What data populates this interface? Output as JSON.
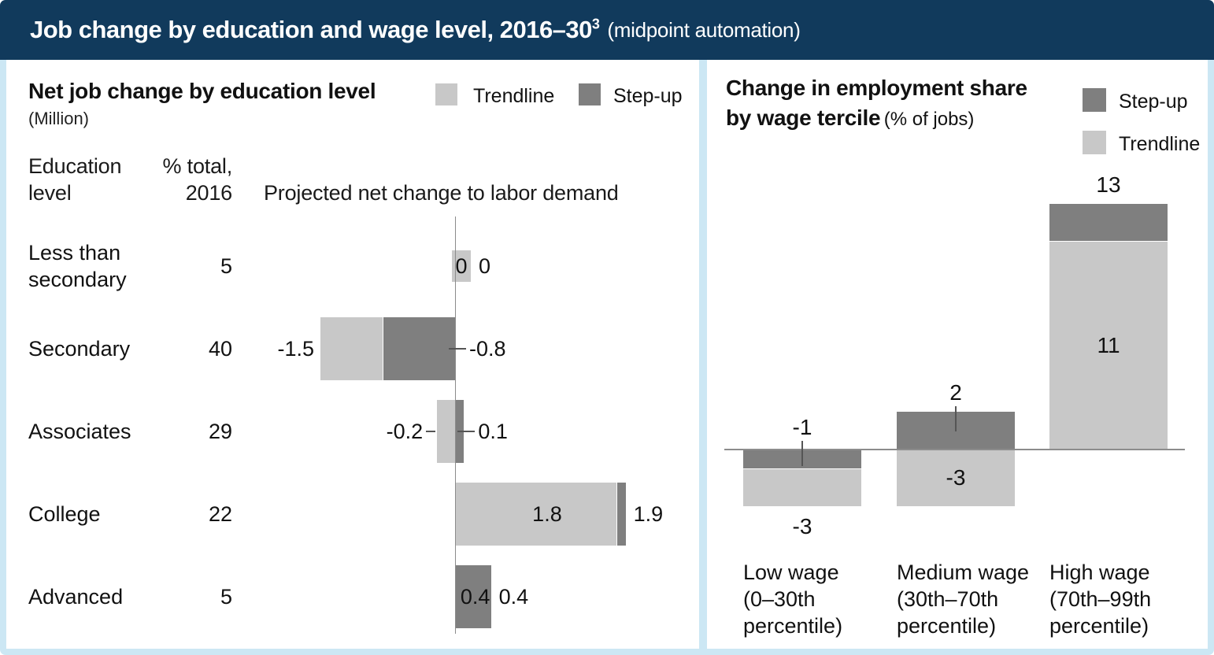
{
  "header": {
    "title": "Job change by education and wage level, 2016–30",
    "title_superscript": "3",
    "title_suffix": "(midpoint automation)"
  },
  "colors": {
    "header_bg": "#113A5C",
    "frame": "#CCE7F4",
    "trendline": "#C8C8C8",
    "step_up": "#7F7F7F",
    "axis_line": "#8C8C8C",
    "panel_bg": "#FFFFFF"
  },
  "left_panel": {
    "title": "Net job change by education level",
    "unit": "(Million)",
    "legend_trendline": "Trendline",
    "legend_step_up": "Step-up",
    "col_education_line1": "Education",
    "col_education_line2": "level",
    "col_pct_line1": "% total,",
    "col_pct_line2": "2016",
    "col_projected": "Projected net change to labor demand"
  },
  "right_panel": {
    "title_line1": "Change in employment share",
    "title_line2": "by wage tercile",
    "title_unit": "(% of jobs)",
    "legend_step_up": "Step-up",
    "legend_trendline": "Trendline"
  },
  "chart_data": [
    {
      "type": "bar",
      "orientation": "horizontal",
      "title": "Net job change by education level (Million)",
      "xlabel": "Projected net change to labor demand",
      "legend": [
        "Trendline",
        "Step-up"
      ],
      "rows": [
        {
          "category": "Less than secondary",
          "category_lines": [
            "Less than",
            "secondary"
          ],
          "pct_total_2016": "5",
          "trendline": 0,
          "step_up": 0,
          "trendline_label": "0",
          "step_up_label": "0",
          "trendline_label_pos": "box",
          "trendline_leader": false,
          "step_up_leader": false
        },
        {
          "category": "Secondary",
          "category_lines": [
            "Secondary"
          ],
          "pct_total_2016": "40",
          "trendline": -1.5,
          "step_up": -0.8,
          "trendline_label": "-1.5",
          "step_up_label": "-0.8",
          "trendline_label_pos": "outside",
          "trendline_leader": false,
          "step_up_leader": true
        },
        {
          "category": "Associates",
          "category_lines": [
            "Associates"
          ],
          "pct_total_2016": "29",
          "trendline": -0.2,
          "step_up": 0.1,
          "trendline_label": "-0.2",
          "step_up_label": "0.1",
          "trendline_label_pos": "outside",
          "trendline_leader": true,
          "step_up_leader": true
        },
        {
          "category": "College",
          "category_lines": [
            "College"
          ],
          "pct_total_2016": "22",
          "trendline": 1.8,
          "step_up": 1.9,
          "trendline_label": "1.8",
          "step_up_label": "1.9",
          "trendline_label_pos": "inside",
          "trendline_leader": false,
          "step_up_leader": false
        },
        {
          "category": "Advanced",
          "category_lines": [
            "Advanced"
          ],
          "pct_total_2016": "5",
          "trendline": 0.4,
          "step_up": 0.4,
          "trendline_label": "0.4",
          "step_up_label": "0.4",
          "trendline_label_pos": "inside",
          "trendline_leader": false,
          "step_up_leader": false
        }
      ]
    },
    {
      "type": "bar",
      "orientation": "vertical",
      "title": "Change in employment share by wage tercile (% of jobs)",
      "legend": [
        "Step-up",
        "Trendline"
      ],
      "bars": [
        {
          "category": "Low wage (0–30th percentile)",
          "category_lines": [
            "Low wage",
            "(0–30th",
            "percentile)"
          ],
          "trendline": -3,
          "step_up": -1,
          "trendline_label": "-3",
          "step_up_label": "-1",
          "step_up_label_pos": "above-axis",
          "step_up_tick": true,
          "trendline_label_pos": "below"
        },
        {
          "category": "Medium wage (30th–70th percentile)",
          "category_lines": [
            "Medium wage",
            "(30th–70th",
            "percentile)"
          ],
          "trendline": -3,
          "step_up": 2,
          "trendline_label": "-3",
          "step_up_label": "2",
          "step_up_label_pos": "above-bar",
          "step_up_tick": true,
          "trendline_label_pos": "inside"
        },
        {
          "category": "High wage (70th–99th percentile)",
          "category_lines": [
            "High wage",
            "(70th–99th",
            "percentile)"
          ],
          "trendline": 11,
          "step_up": 13,
          "trendline_label": "11",
          "step_up_label": "13",
          "step_up_label_pos": "above-bar",
          "step_up_tick": false,
          "trendline_label_pos": "inside"
        }
      ]
    }
  ]
}
